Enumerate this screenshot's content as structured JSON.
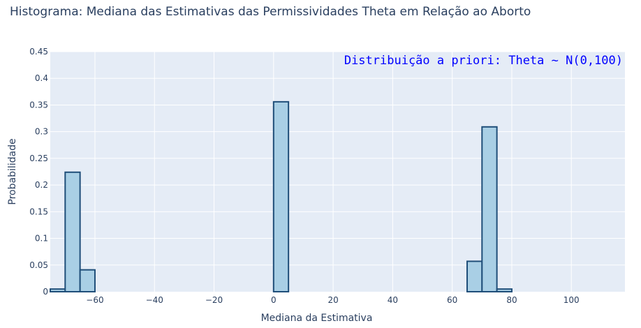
{
  "chart_data": {
    "type": "bar",
    "title": "Histograma: Mediana das Estimativas das Permissividades Theta em Relação ao Aborto",
    "xlabel": "Mediana da Estimativa",
    "ylabel": "Probabilidade",
    "annotation": "Distribuição a priori: Theta ~ N(0,100)",
    "xlim": [
      -75,
      118
    ],
    "ylim": [
      0,
      0.45
    ],
    "bin_width": 5,
    "bins": [
      {
        "x0": -75,
        "x1": -70,
        "value": 0.005
      },
      {
        "x0": -70,
        "x1": -65,
        "value": 0.224
      },
      {
        "x0": -65,
        "x1": -60,
        "value": 0.041
      },
      {
        "x0": 0,
        "x1": 5,
        "value": 0.356
      },
      {
        "x0": 65,
        "x1": 70,
        "value": 0.057
      },
      {
        "x0": 70,
        "x1": 75,
        "value": 0.309
      },
      {
        "x0": 75,
        "x1": 80,
        "value": 0.005
      }
    ],
    "x_ticks": [
      -60,
      -40,
      -20,
      0,
      20,
      40,
      60,
      80,
      100
    ],
    "x_tick_labels": [
      "−60",
      "−40",
      "−20",
      "0",
      "20",
      "40",
      "60",
      "80",
      "100"
    ],
    "y_ticks": [
      0,
      0.05,
      0.1,
      0.15,
      0.2,
      0.25,
      0.3,
      0.35,
      0.4,
      0.45
    ],
    "y_tick_labels": [
      "0",
      "0.05",
      "0.1",
      "0.15",
      "0.2",
      "0.25",
      "0.3",
      "0.35",
      "0.4",
      "0.45"
    ],
    "grid": true,
    "colors": {
      "bar_fill": "#a9cfe5",
      "bar_stroke": "#1f4e79",
      "plot_bg": "#e5ecf6",
      "grid": "#ffffff",
      "text": "#2a3f5f",
      "annotation": "#0000ff"
    }
  }
}
